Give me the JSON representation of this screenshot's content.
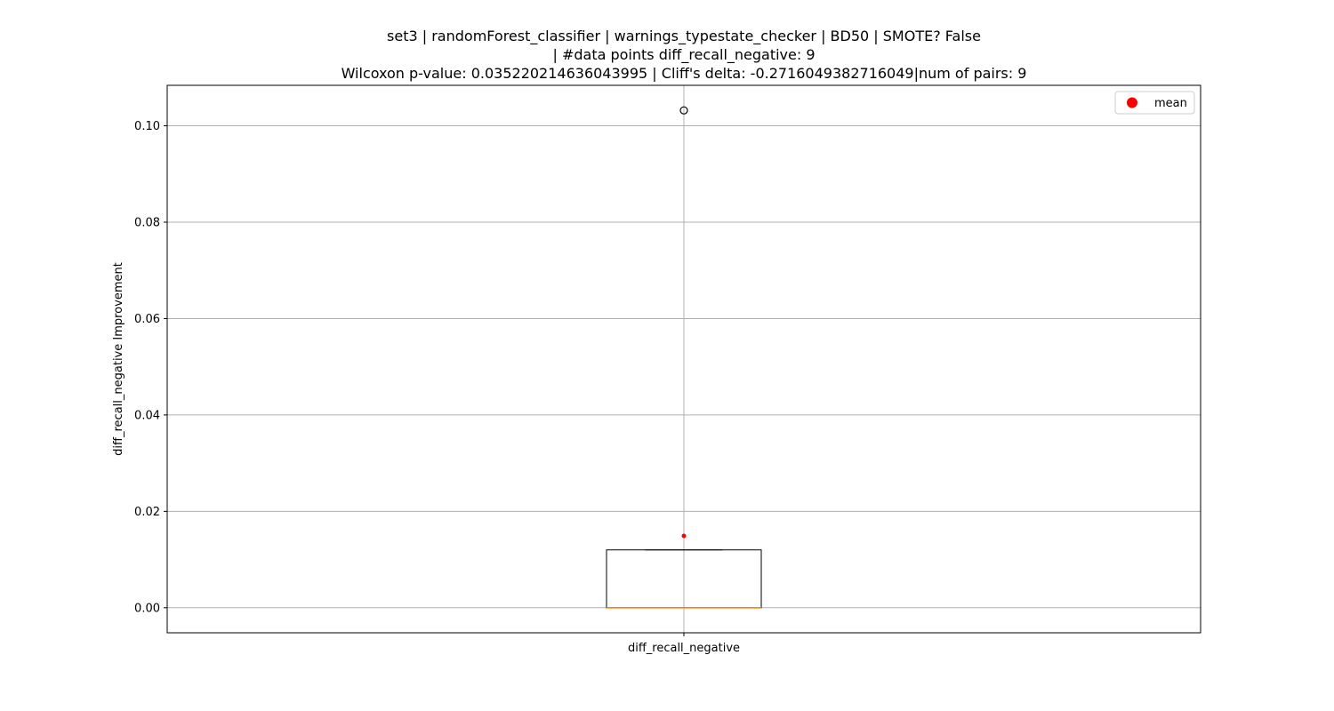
{
  "chart_data": {
    "type": "box",
    "title_lines": [
      "set3 | randomForest_classifier | warnings_typestate_checker | BD50 | SMOTE? False",
      "| #data points diff_recall_negative: 9",
      "Wilcoxon p-value: 0.035220214636043995 | Cliff's delta: -0.2716049382716049|num of pairs: 9"
    ],
    "xlabel": "",
    "ylabel": "diff_recall_negative Improvement",
    "categories": [
      "diff_recall_negative"
    ],
    "ylim": [
      -0.0052,
      0.1084
    ],
    "yticks": [
      0.0,
      0.02,
      0.04,
      0.06,
      0.08,
      0.1
    ],
    "ytick_labels": [
      "0.00",
      "0.02",
      "0.04",
      "0.06",
      "0.08",
      "0.10"
    ],
    "grid": true,
    "box": {
      "q1": 0.0,
      "median": 0.0,
      "q3": 0.012,
      "whisker_low": 0.0,
      "whisker_high": 0.012,
      "outliers": [
        0.1032
      ],
      "mean": 0.0149
    },
    "legend": {
      "position": "top-right",
      "entries": [
        {
          "label": "mean",
          "color": "#ff0000"
        }
      ]
    },
    "colors": {
      "box": "#000000",
      "median": "#ff7f0e",
      "mean": "#ff0000",
      "grid": "#b0b0b0"
    }
  }
}
